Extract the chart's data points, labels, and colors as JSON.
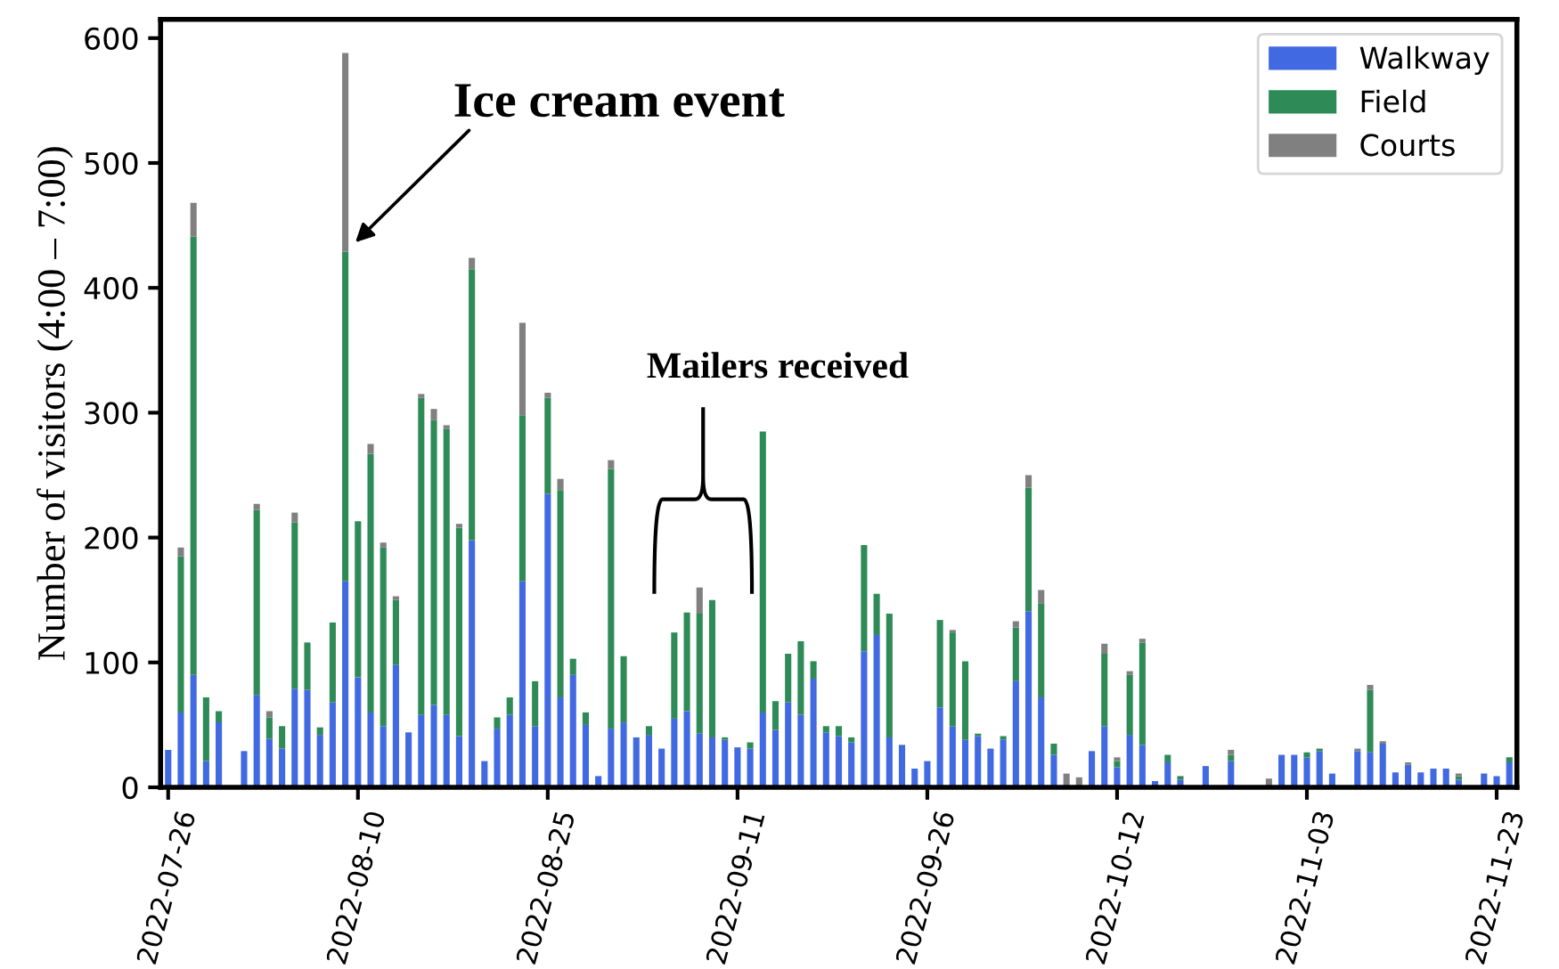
{
  "chart_data": {
    "type": "bar",
    "stacked": true,
    "ylabel": "Number of visitors (4:00 – 7:00)",
    "categories": [
      "2022-07-26",
      null,
      null,
      null,
      null,
      null,
      null,
      null,
      null,
      null,
      null,
      null,
      null,
      null,
      null,
      "2022-08-10",
      null,
      null,
      null,
      null,
      null,
      null,
      null,
      null,
      null,
      null,
      null,
      null,
      null,
      null,
      "2022-08-25",
      null,
      null,
      null,
      null,
      null,
      null,
      null,
      null,
      null,
      null,
      null,
      null,
      null,
      null,
      "2022-09-11",
      null,
      null,
      null,
      null,
      null,
      null,
      null,
      null,
      null,
      null,
      null,
      null,
      null,
      null,
      "2022-09-26",
      null,
      null,
      null,
      null,
      null,
      null,
      null,
      null,
      null,
      null,
      null,
      null,
      null,
      null,
      "2022-10-12",
      null,
      null,
      null,
      null,
      null,
      null,
      null,
      null,
      null,
      null,
      null,
      null,
      null,
      null,
      "2022-11-03",
      null,
      null,
      null,
      null,
      null,
      null,
      null,
      null,
      null,
      null,
      null,
      null,
      null,
      null,
      "2022-11-23",
      null
    ],
    "series": [
      {
        "name": "Walkway",
        "color": "#4169e1",
        "values": [
          30,
          60,
          90,
          21,
          52,
          0,
          29,
          74,
          39,
          31,
          79,
          78,
          42,
          68,
          165,
          88,
          60,
          49,
          98,
          44,
          58,
          66,
          58,
          41,
          198,
          21,
          47,
          58,
          165,
          49,
          235,
          72,
          90,
          50,
          9,
          47,
          52,
          40,
          42,
          31,
          55,
          61,
          43,
          40,
          38,
          32,
          31,
          60,
          46,
          68,
          58,
          87,
          44,
          41,
          36,
          109,
          122,
          40,
          34,
          15,
          21,
          64,
          49,
          38,
          41,
          31,
          38,
          85,
          141,
          72,
          26,
          0,
          0,
          29,
          49,
          16,
          42,
          34,
          5,
          20,
          6,
          0,
          17,
          0,
          21,
          0,
          0,
          0,
          26,
          26,
          24,
          29,
          11,
          0,
          29,
          28,
          35,
          12,
          18,
          12,
          15,
          15,
          6,
          0,
          11,
          9,
          20
        ]
      },
      {
        "name": "Field",
        "color": "#2e8b57",
        "values": [
          0,
          125,
          351,
          51,
          9,
          0,
          0,
          148,
          17,
          18,
          133,
          38,
          6,
          64,
          264,
          125,
          207,
          143,
          52,
          0,
          254,
          228,
          229,
          167,
          217,
          0,
          9,
          14,
          133,
          36,
          77,
          166,
          13,
          10,
          0,
          208,
          53,
          0,
          7,
          0,
          69,
          79,
          96,
          110,
          2,
          0,
          5,
          225,
          23,
          39,
          59,
          14,
          5,
          8,
          4,
          85,
          33,
          99,
          0,
          0,
          0,
          70,
          75,
          63,
          2,
          0,
          3,
          43,
          99,
          75,
          9,
          0,
          0,
          0,
          58,
          5,
          48,
          82,
          0,
          6,
          3,
          0,
          0,
          0,
          5,
          0,
          0,
          0,
          0,
          0,
          4,
          2,
          0,
          0,
          0,
          50,
          0,
          0,
          0,
          0,
          0,
          0,
          3,
          0,
          0,
          0,
          4
        ]
      },
      {
        "name": "Courts",
        "color": "#808080",
        "values": [
          0,
          7,
          27,
          0,
          0,
          0,
          0,
          5,
          5,
          0,
          8,
          0,
          0,
          0,
          159,
          0,
          8,
          4,
          3,
          0,
          3,
          9,
          3,
          3,
          9,
          0,
          0,
          0,
          74,
          0,
          4,
          9,
          0,
          0,
          0,
          7,
          0,
          0,
          0,
          0,
          0,
          0,
          21,
          0,
          0,
          0,
          0,
          0,
          0,
          0,
          0,
          0,
          0,
          0,
          0,
          0,
          0,
          0,
          0,
          0,
          0,
          0,
          2,
          0,
          0,
          0,
          0,
          5,
          10,
          11,
          0,
          11,
          8,
          0,
          8,
          3,
          3,
          3,
          0,
          0,
          0,
          0,
          0,
          0,
          4,
          0,
          0,
          7,
          0,
          0,
          0,
          0,
          0,
          0,
          2,
          4,
          2,
          0,
          2,
          0,
          0,
          0,
          2,
          0,
          0,
          0,
          0
        ]
      }
    ],
    "ylim": [
      0,
      615
    ],
    "yticks": [
      0,
      100,
      200,
      300,
      400,
      500,
      600
    ],
    "grid": false,
    "legend": "top right",
    "annotations": [
      "Ice cream event",
      "Mailers received"
    ]
  }
}
